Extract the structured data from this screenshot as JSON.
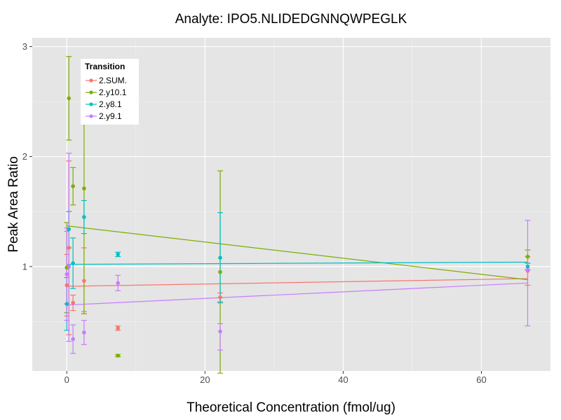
{
  "chart_data": {
    "type": "scatter",
    "title": "Analyte: IPO5.NLIDEDGNNQWPEGLK",
    "xlabel": "Theoretical Concentration (fmol/ug)",
    "ylabel": "Peak Area Ratio",
    "xlim": [
      -5,
      70
    ],
    "ylim": [
      0.05,
      3.08
    ],
    "x_ticks": [
      0,
      20,
      40,
      60
    ],
    "y_ticks": [
      1,
      2,
      3
    ],
    "grid": true,
    "legend": {
      "title": "Transition",
      "position": "top-left"
    },
    "series": [
      {
        "name": "2.SUM.",
        "color": "#F8766D",
        "points": [
          {
            "x": 0,
            "y": 0.83,
            "lo": 0.55,
            "hi": 1.11
          },
          {
            "x": 0,
            "y": 0.99,
            "lo": 0.66,
            "hi": 1.32
          },
          {
            "x": 0.3,
            "y": 1.17,
            "lo": 0.38,
            "hi": 1.96
          },
          {
            "x": 0.9,
            "y": 0.67,
            "lo": 0.6,
            "hi": 0.74
          },
          {
            "x": 2.5,
            "y": 0.87,
            "lo": 0.59,
            "hi": 1.17
          },
          {
            "x": 7.4,
            "y": 0.44,
            "lo": 0.42,
            "hi": 0.46
          },
          {
            "x": 22.2,
            "y": 0.72,
            "lo": 0.68,
            "hi": 0.76
          },
          {
            "x": 66.7,
            "y": 0.96,
            "lo": 0.83,
            "hi": 1.09
          }
        ],
        "fit": [
          [
            0,
            0.82
          ],
          [
            66.7,
            0.89
          ]
        ]
      },
      {
        "name": "2.y10.1",
        "color": "#7CAE00",
        "points": [
          {
            "x": 0,
            "y": 0.99,
            "lo": 0.58,
            "hi": 1.4
          },
          {
            "x": 0.3,
            "y": 2.53,
            "lo": 2.15,
            "hi": 2.91
          },
          {
            "x": 0.9,
            "y": 1.73,
            "lo": 1.56,
            "hi": 1.9
          },
          {
            "x": 2.5,
            "y": 1.71,
            "lo": 0.57,
            "hi": 2.85
          },
          {
            "x": 7.4,
            "y": 0.19,
            "lo": 0.18,
            "hi": 0.2
          },
          {
            "x": 22.2,
            "y": 0.95,
            "lo": 0.03,
            "hi": 1.87
          },
          {
            "x": 66.7,
            "y": 1.09,
            "lo": 1.03,
            "hi": 1.15
          }
        ],
        "fit": [
          [
            0,
            1.37
          ],
          [
            66.7,
            0.88
          ]
        ]
      },
      {
        "name": "2.y8.1",
        "color": "#00BFC4",
        "points": [
          {
            "x": 0,
            "y": 0.66,
            "lo": 0.42,
            "hi": 0.9
          },
          {
            "x": 0.3,
            "y": 1.34,
            "lo": 1.17,
            "hi": 1.5
          },
          {
            "x": 0.9,
            "y": 1.03,
            "lo": 0.8,
            "hi": 1.26
          },
          {
            "x": 2.5,
            "y": 1.45,
            "lo": 1.3,
            "hi": 1.6
          },
          {
            "x": 7.4,
            "y": 1.11,
            "lo": 1.09,
            "hi": 1.13
          },
          {
            "x": 22.2,
            "y": 1.08,
            "lo": 0.67,
            "hi": 1.49
          },
          {
            "x": 66.7,
            "y": 1.0,
            "lo": 0.97,
            "hi": 1.03
          }
        ],
        "fit": [
          [
            0,
            1.02
          ],
          [
            66.7,
            1.04
          ]
        ]
      },
      {
        "name": "2.y9.1",
        "color": "#C77CFF",
        "points": [
          {
            "x": 0,
            "y": 0.93,
            "lo": 0.51,
            "hi": 1.35
          },
          {
            "x": 0.3,
            "y": 1.0,
            "lo": 0.32,
            "hi": 2.03
          },
          {
            "x": 0.9,
            "y": 0.34,
            "lo": 0.21,
            "hi": 0.47
          },
          {
            "x": 2.5,
            "y": 0.4,
            "lo": 0.29,
            "hi": 0.51
          },
          {
            "x": 7.4,
            "y": 0.85,
            "lo": 0.78,
            "hi": 0.92
          },
          {
            "x": 22.2,
            "y": 0.41,
            "lo": 0.24,
            "hi": 0.48
          },
          {
            "x": 66.7,
            "y": 0.97,
            "lo": 0.46,
            "hi": 1.42
          }
        ],
        "fit": [
          [
            0,
            0.65
          ],
          [
            66.7,
            0.85
          ]
        ]
      }
    ]
  }
}
